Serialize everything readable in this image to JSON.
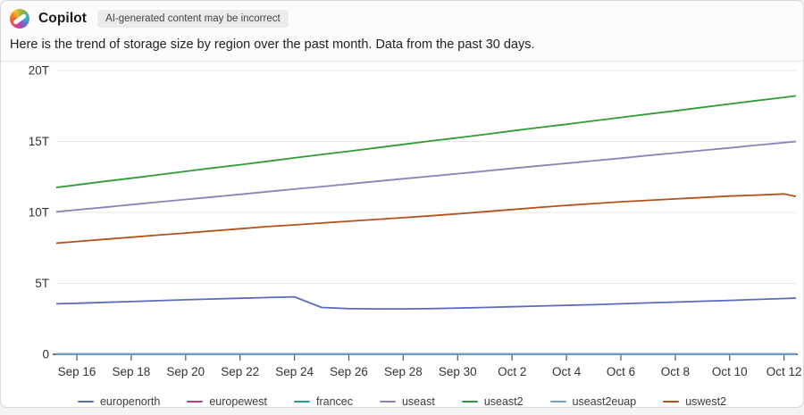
{
  "header": {
    "app_name": "Copilot",
    "disclaimer": "AI-generated content may be incorrect"
  },
  "message": "Here is the trend of storage size by region over the past month. Data from the past 30 days.",
  "chart_data": {
    "type": "line",
    "x": [
      "Sep 15",
      "Sep 16",
      "Sep 17",
      "Sep 18",
      "Sep 19",
      "Sep 20",
      "Sep 21",
      "Sep 22",
      "Sep 23",
      "Sep 24",
      "Sep 25",
      "Sep 26",
      "Sep 27",
      "Sep 28",
      "Sep 29",
      "Sep 30",
      "Oct 1",
      "Oct 2",
      "Oct 3",
      "Oct 4",
      "Oct 5",
      "Oct 6",
      "Oct 7",
      "Oct 8",
      "Oct 9",
      "Oct 10",
      "Oct 11",
      "Oct 12",
      "Oct 13"
    ],
    "x_tick_labels": [
      "Sep 16",
      "Sep 18",
      "Sep 20",
      "Sep 22",
      "Sep 24",
      "Sep 26",
      "Sep 28",
      "Sep 30",
      "Oct 2",
      "Oct 4",
      "Oct 6",
      "Oct 8",
      "Oct 10",
      "Oct 12"
    ],
    "y_ticks": [
      0,
      5,
      10,
      15,
      20
    ],
    "y_tick_labels": [
      "0",
      "5T",
      "10T",
      "15T",
      "20T"
    ],
    "ylim": [
      0,
      20
    ],
    "y_unit": "T",
    "grid": true,
    "legend_position": "bottom",
    "series": [
      {
        "name": "europenorth",
        "color": "#5c6cbe",
        "values": [
          3.55,
          3.6,
          3.66,
          3.72,
          3.78,
          3.84,
          3.9,
          3.95,
          4.0,
          4.05,
          3.3,
          3.22,
          3.2,
          3.2,
          3.22,
          3.26,
          3.3,
          3.35,
          3.4,
          3.45,
          3.5,
          3.56,
          3.62,
          3.68,
          3.74,
          3.8,
          3.87,
          3.93,
          4.0
        ]
      },
      {
        "name": "europewest",
        "color": "#bf3978",
        "values": [
          0.02,
          0.02,
          0.02,
          0.02,
          0.02,
          0.02,
          0.02,
          0.02,
          0.02,
          0.02,
          0.02,
          0.02,
          0.02,
          0.02,
          0.02,
          0.02,
          0.02,
          0.02,
          0.02,
          0.02,
          0.02,
          0.02,
          0.02,
          0.02,
          0.02,
          0.02,
          0.02,
          0.02,
          0.02
        ]
      },
      {
        "name": "francec",
        "color": "#289c89",
        "values": [
          0.02,
          0.02,
          0.02,
          0.02,
          0.02,
          0.02,
          0.02,
          0.02,
          0.02,
          0.02,
          0.02,
          0.02,
          0.02,
          0.02,
          0.02,
          0.02,
          0.02,
          0.02,
          0.02,
          0.02,
          0.02,
          0.02,
          0.02,
          0.02,
          0.02,
          0.02,
          0.02,
          0.02,
          0.02
        ]
      },
      {
        "name": "useast",
        "color": "#8d81ba",
        "values": [
          10.0,
          10.18,
          10.36,
          10.55,
          10.73,
          10.91,
          11.09,
          11.27,
          11.46,
          11.64,
          11.82,
          12.0,
          12.19,
          12.37,
          12.55,
          12.73,
          12.91,
          13.1,
          13.28,
          13.46,
          13.64,
          13.82,
          14.01,
          14.19,
          14.37,
          14.55,
          14.74,
          14.92,
          15.1
        ]
      },
      {
        "name": "useast2",
        "color": "#2e9d32",
        "values": [
          11.7,
          11.94,
          12.18,
          12.41,
          12.65,
          12.89,
          13.13,
          13.36,
          13.6,
          13.84,
          14.08,
          14.31,
          14.55,
          14.79,
          15.03,
          15.26,
          15.5,
          15.74,
          15.98,
          16.21,
          16.45,
          16.69,
          16.93,
          17.16,
          17.4,
          17.64,
          17.88,
          18.11,
          18.35
        ]
      },
      {
        "name": "useast2euap",
        "color": "#6ba3cf",
        "values": [
          0.02,
          0.02,
          0.02,
          0.02,
          0.02,
          0.02,
          0.02,
          0.02,
          0.02,
          0.02,
          0.02,
          0.02,
          0.02,
          0.02,
          0.02,
          0.02,
          0.02,
          0.02,
          0.02,
          0.02,
          0.02,
          0.02,
          0.02,
          0.02,
          0.02,
          0.02,
          0.02,
          0.02,
          0.02
        ]
      },
      {
        "name": "uswest2",
        "color": "#b2521a",
        "values": [
          7.8,
          7.95,
          8.1,
          8.25,
          8.4,
          8.55,
          8.7,
          8.85,
          9.0,
          9.12,
          9.25,
          9.38,
          9.5,
          9.63,
          9.76,
          9.9,
          10.05,
          10.2,
          10.35,
          10.5,
          10.62,
          10.75,
          10.85,
          10.95,
          11.05,
          11.15,
          11.22,
          11.3,
          10.9
        ]
      }
    ]
  }
}
